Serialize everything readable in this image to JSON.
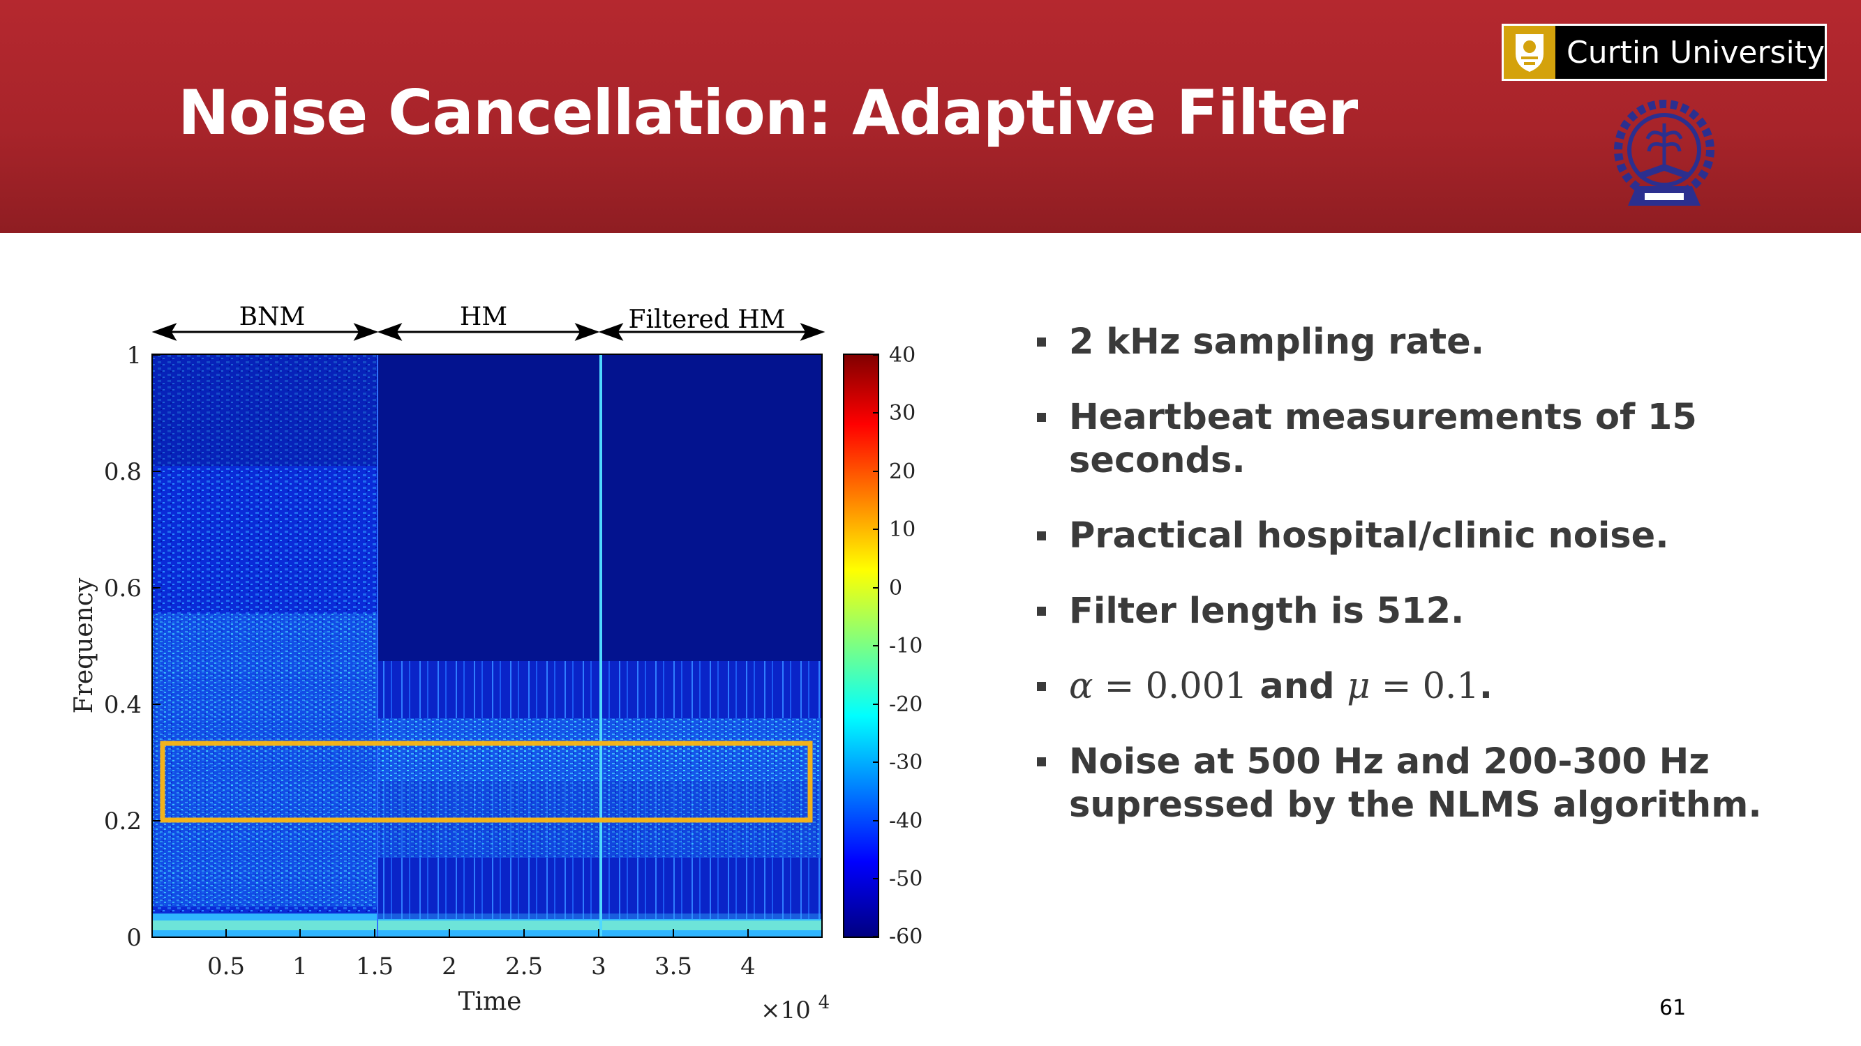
{
  "slide": {
    "title": "Noise Cancellation: Adaptive Filter",
    "page_number": "61",
    "header_color": "#b5282f",
    "logo": {
      "text": "Curtin University",
      "crest_color": "#d4a20c",
      "icon": "curtin-crest-icon"
    },
    "seal_icon": "institute-seal-icon"
  },
  "bullets": [
    {
      "text": "2 kHz sampling rate."
    },
    {
      "text": "Heartbeat measurements of 15 seconds."
    },
    {
      "text": "Practical hospital/clinic noise."
    },
    {
      "text": "Filter length is 512."
    },
    {
      "alpha_sym": "α",
      "eq1": " = 0.001",
      "and": " and ",
      "mu_sym": "μ",
      "eq2": " = 0.1",
      "end": "."
    },
    {
      "text": "Noise at 500 Hz and 200-300 Hz supressed by the NLMS algorithm."
    }
  ],
  "figure": {
    "segments": [
      "BNM",
      "HM",
      "Filtered HM"
    ],
    "xlabel": "Time",
    "ylabel": "Frequency",
    "x_multiplier": "×10",
    "x_multiplier_exp": "4",
    "x_ticks": [
      "0.5",
      "1",
      "1.5",
      "2",
      "2.5",
      "3",
      "3.5",
      "4"
    ],
    "y_ticks": [
      "0",
      "0.2",
      "0.4",
      "0.6",
      "0.8",
      "1"
    ],
    "colorbar_ticks": [
      "40",
      "30",
      "20",
      "10",
      "0",
      "-10",
      "-20",
      "-30",
      "-40",
      "-50",
      "-60"
    ],
    "highlight_color": "#f2b21b"
  }
}
